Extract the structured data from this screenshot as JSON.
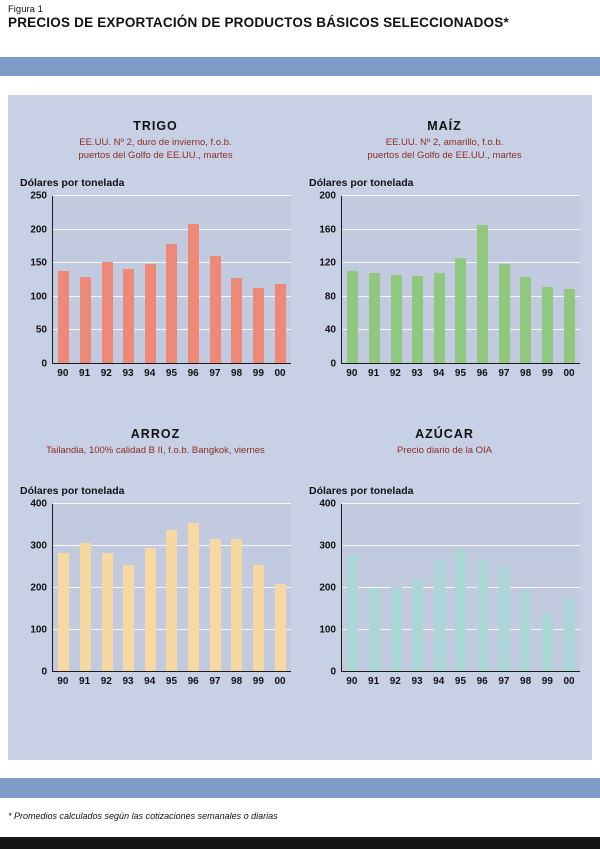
{
  "page": {
    "figure_label": "Figura 1",
    "title": "PRECIOS DE EXPORTACIÓN DE PRODUCTOS BÁSICOS SELECCIONADOS*",
    "footnote": "* Promedios calculados según las cotizaciones semanales o diarias"
  },
  "colors": {
    "band": "#7f9cc9",
    "panel": "#c8d0e5",
    "plot_bg": "#c1cade",
    "subtitle_text": "#8b2e20",
    "footer_bar": "#161616"
  },
  "chart_data": [
    {
      "type": "bar",
      "title": "TRIGO",
      "subtitle_lines": [
        "EE.UU. Nº 2, duro de invierno, f.o.b.",
        "puertos del Golfo de EE.UU., martes"
      ],
      "ylabel": "Dólares por tonelada",
      "categories": [
        "90",
        "91",
        "92",
        "93",
        "94",
        "95",
        "96",
        "97",
        "98",
        "99",
        "00"
      ],
      "values": [
        137,
        128,
        151,
        140,
        147,
        177,
        207,
        159,
        127,
        112,
        118
      ],
      "ylim": [
        0,
        250
      ],
      "yticks": [
        0,
        50,
        100,
        150,
        200,
        250
      ],
      "bar_color": "#ef8977",
      "grid": true,
      "legend": "none"
    },
    {
      "type": "bar",
      "title": "MAÍZ",
      "subtitle_lines": [
        "EE.UU. Nº 2, amarillo, f.o.b.",
        "puertos del Golfo de EE.UU., martes"
      ],
      "ylabel": "Dólares por tonelada",
      "categories": [
        "90",
        "91",
        "92",
        "93",
        "94",
        "95",
        "96",
        "97",
        "98",
        "99",
        "00"
      ],
      "values": [
        110,
        107,
        105,
        103,
        107,
        125,
        164,
        118,
        102,
        90,
        88
      ],
      "ylim": [
        0,
        200
      ],
      "yticks": [
        0,
        40,
        80,
        120,
        160,
        200
      ],
      "bar_color": "#8fc87e",
      "grid": true,
      "legend": "none"
    },
    {
      "type": "bar",
      "title": "ARROZ",
      "subtitle_lines": [
        "Tailandia, 100% calidad B II, f.o.b. Bangkok, viernes"
      ],
      "ylabel": "Dólares por tonelada",
      "categories": [
        "90",
        "91",
        "92",
        "93",
        "94",
        "95",
        "96",
        "97",
        "98",
        "99",
        "00"
      ],
      "values": [
        282,
        305,
        281,
        253,
        292,
        336,
        352,
        314,
        315,
        252,
        206
      ],
      "ylim": [
        0,
        400
      ],
      "yticks": [
        0,
        100,
        200,
        300,
        400
      ],
      "bar_color": "#f6d9a0",
      "grid": true,
      "legend": "none"
    },
    {
      "type": "bar",
      "title": "AZÚCAR",
      "subtitle_lines": [
        "Precio diario de la OIA"
      ],
      "ylabel": "Dólares por tonelada",
      "categories": [
        "90",
        "91",
        "92",
        "93",
        "94",
        "95",
        "96",
        "97",
        "98",
        "99",
        "00"
      ],
      "values": [
        277,
        197,
        200,
        220,
        264,
        291,
        264,
        248,
        193,
        137,
        174
      ],
      "ylim": [
        0,
        400
      ],
      "yticks": [
        0,
        100,
        200,
        300,
        400
      ],
      "bar_color": "#abd8d6",
      "grid": true,
      "legend": "none"
    }
  ]
}
